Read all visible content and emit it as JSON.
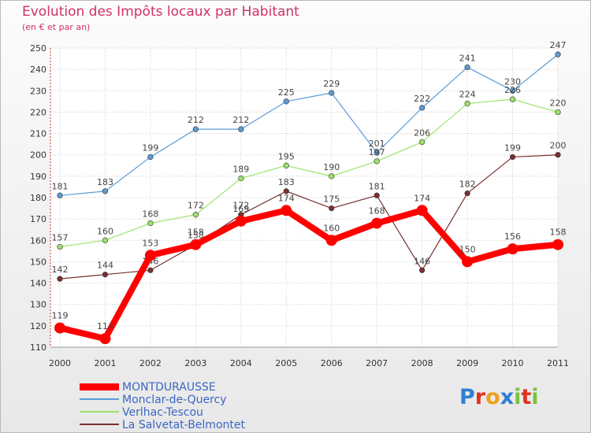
{
  "chart_data": {
    "type": "line",
    "title": "Evolution des Impôts locaux par Habitant",
    "subtitle": "(en € et par an)",
    "xlabel": "",
    "ylabel": "",
    "x": [
      "2000",
      "2001",
      "2002",
      "2003",
      "2004",
      "2005",
      "2006",
      "2007",
      "2008",
      "2009",
      "2010",
      "2011"
    ],
    "ylim": [
      110,
      250
    ],
    "yticks": [
      110,
      120,
      130,
      140,
      150,
      160,
      170,
      180,
      190,
      200,
      210,
      220,
      230,
      240,
      250
    ],
    "grid": true,
    "legend_position": "bottom-left",
    "series": [
      {
        "name": "Monclar-de-Quercy",
        "color": "#5b9bd5",
        "values": [
          181,
          183,
          199,
          212,
          212,
          225,
          229,
          201,
          222,
          241,
          230,
          247
        ]
      },
      {
        "name": "Verlhac-Tescou",
        "color": "#9be36b",
        "values": [
          157,
          160,
          168,
          172,
          189,
          195,
          190,
          197,
          206,
          224,
          226,
          220
        ]
      },
      {
        "name": "La Salvetat-Belmontet",
        "color": "#7a2f2f",
        "values": [
          142,
          144,
          146,
          158,
          172,
          183,
          175,
          181,
          146,
          182,
          199,
          200
        ]
      },
      {
        "name": "MONTDURAUSSE",
        "color": "#ff0000",
        "values": [
          119,
          114,
          153,
          158,
          169,
          174,
          160,
          168,
          174,
          150,
          156,
          158
        ]
      }
    ]
  },
  "legend": {
    "items": [
      {
        "label": "MONTDURAUSSE",
        "color": "#ff0000"
      },
      {
        "label": "Monclar-de-Quercy",
        "color": "#5b9bd5"
      },
      {
        "label": "Verlhac-Tescou",
        "color": "#9be36b"
      },
      {
        "label": "La Salvetat-Belmontet",
        "color": "#7a2f2f"
      }
    ]
  },
  "logo": {
    "text": "Proxiti",
    "letters": [
      {
        "ch": "P",
        "color": "#2f7fd3"
      },
      {
        "ch": "r",
        "color": "#e0311f"
      },
      {
        "ch": "o",
        "color": "#f0a020"
      },
      {
        "ch": "x",
        "color": "#2f7fd3"
      },
      {
        "ch": "i",
        "color": "#7cc23c"
      },
      {
        "ch": "t",
        "color": "#e0311f"
      },
      {
        "ch": "i",
        "color": "#7cc23c"
      }
    ]
  }
}
